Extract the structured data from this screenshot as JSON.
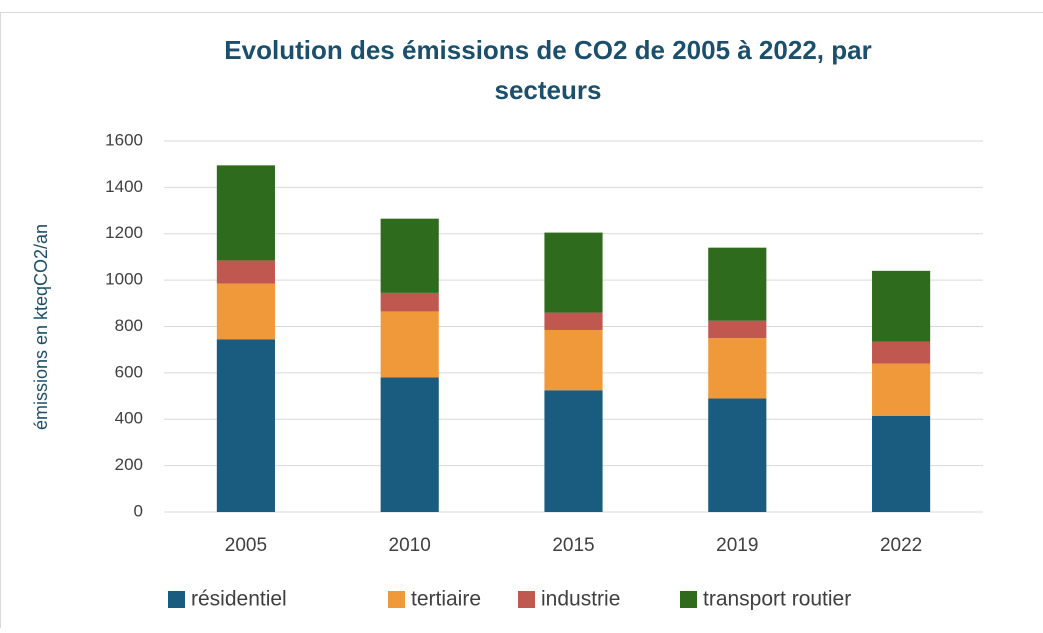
{
  "chart_data": {
    "type": "stacked_bar",
    "title": "Evolution des émissions de CO2 de 2005 à 2022, par",
    "subtitle": "secteurs",
    "y_label": "émissions en kteqCO2/an",
    "categories": [
      "2005",
      "2010",
      "2015",
      "2019",
      "2022"
    ],
    "series": [
      {
        "name": "résidentiel",
        "color": "#195c80",
        "values": [
          745,
          580,
          525,
          490,
          415
        ]
      },
      {
        "name": "tertiaire",
        "color": "#f0993a",
        "values": [
          240,
          285,
          260,
          260,
          225
        ]
      },
      {
        "name": "industrie",
        "color": "#c0584f",
        "values": [
          100,
          80,
          75,
          75,
          95
        ]
      },
      {
        "name": "transport routier",
        "color": "#2f6b1d",
        "values": [
          410,
          320,
          345,
          315,
          305
        ]
      }
    ],
    "ylim": [
      0,
      1600
    ],
    "yticks": [
      0,
      200,
      400,
      600,
      800,
      1000,
      1200,
      1400,
      1600
    ],
    "grid": true,
    "legend": "bottom"
  }
}
